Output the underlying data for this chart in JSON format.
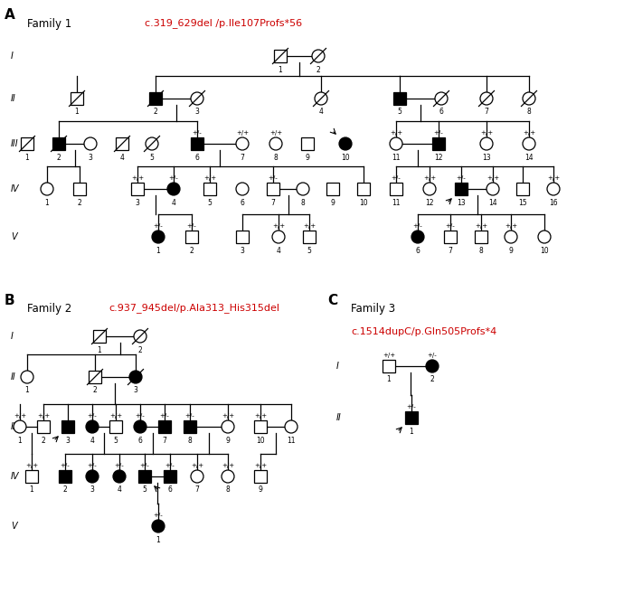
{
  "family1_title": "Family 1",
  "family1_mutation": "c.319_629del /p.Ile107Profs*56",
  "family2_title": "Family 2",
  "family2_mutation": "c.937_945del/p.Ala313_His315del",
  "family3_title": "Family 3",
  "family3_mutation": "c.1514dupC/p.Gln505Profs*4",
  "mutation_color": "#cc0000",
  "black": "#000000",
  "white": "#ffffff",
  "sq": 0.07,
  "cr": 0.07,
  "lw": 0.9,
  "fs_label": 11,
  "fs_gen": 7,
  "fs_num": 5.5,
  "fs_gt": 5,
  "fs_title": 8.5,
  "fs_mut": 8
}
